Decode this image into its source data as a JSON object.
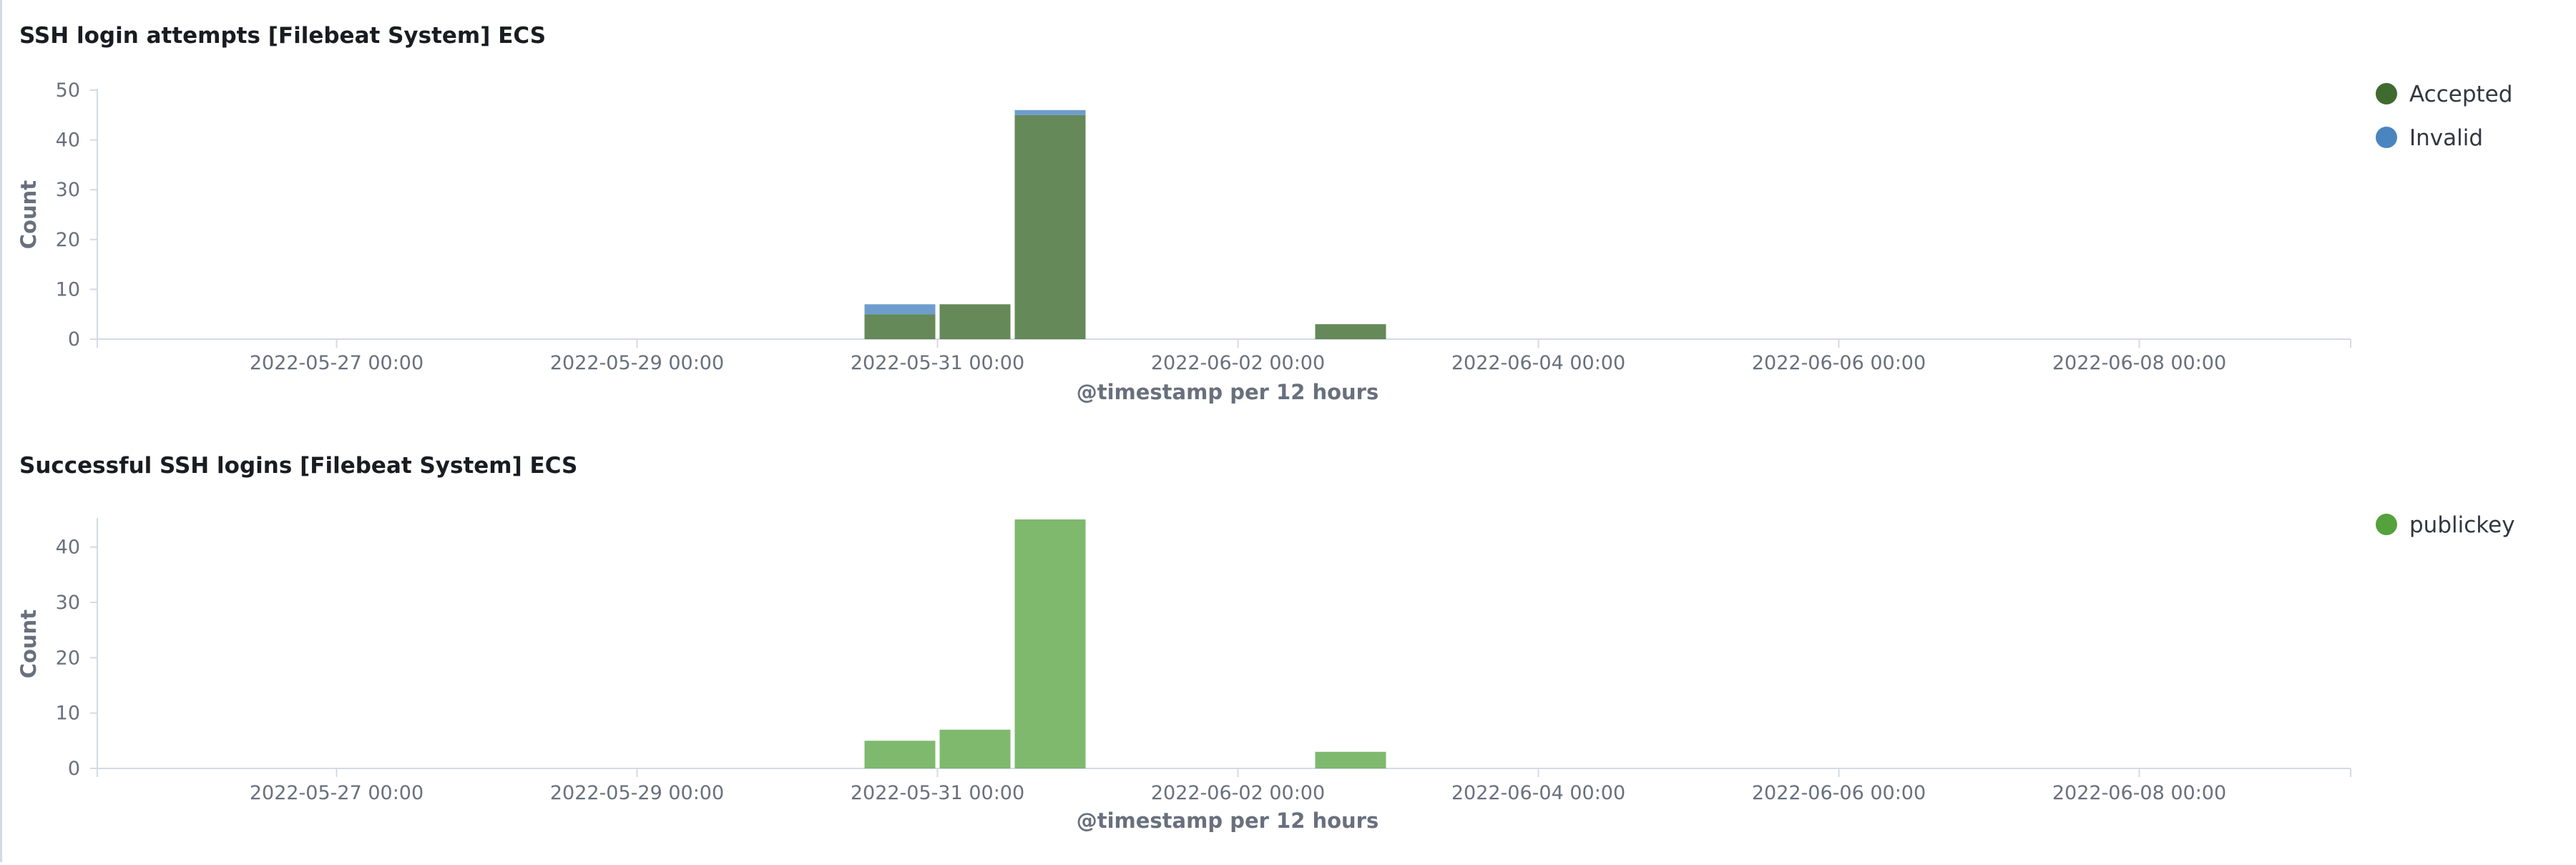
{
  "chart_data": [
    {
      "type": "bar",
      "title": "SSH login attempts [Filebeat System] ECS",
      "xlabel": "@timestamp per 12 hours",
      "ylabel": "Count",
      "ylim": [
        0,
        50
      ],
      "yticks": [
        0,
        10,
        20,
        30,
        40,
        50
      ],
      "xtick_labels": [
        "2022-05-27 00:00",
        "2022-05-29 00:00",
        "2022-05-31 00:00",
        "2022-06-02 00:00",
        "2022-06-04 00:00",
        "2022-06-06 00:00",
        "2022-06-08 00:00"
      ],
      "stacked": true,
      "legend_position": "right",
      "grid": false,
      "categories": [
        "2022-05-30 12:00",
        "2022-05-31 00:00",
        "2022-05-31 12:00",
        "2022-06-02 12:00"
      ],
      "series": [
        {
          "name": "Accepted",
          "color": "#3f6b30",
          "values": [
            5,
            7,
            45,
            3
          ]
        },
        {
          "name": "Invalid",
          "color": "#4a85c0",
          "values": [
            2,
            0,
            1,
            0
          ]
        }
      ]
    },
    {
      "type": "bar",
      "title": "Successful SSH logins [Filebeat System] ECS",
      "xlabel": "@timestamp per 12 hours",
      "ylabel": "Count",
      "ylim": [
        0,
        45
      ],
      "yticks": [
        0,
        10,
        20,
        30,
        40
      ],
      "xtick_labels": [
        "2022-05-27 00:00",
        "2022-05-29 00:00",
        "2022-05-31 00:00",
        "2022-06-02 00:00",
        "2022-06-04 00:00",
        "2022-06-06 00:00",
        "2022-06-08 00:00"
      ],
      "stacked": false,
      "legend_position": "right",
      "grid": false,
      "categories": [
        "2022-05-30 12:00",
        "2022-05-31 00:00",
        "2022-05-31 12:00",
        "2022-06-02 12:00"
      ],
      "series": [
        {
          "name": "publickey",
          "color": "#54a13d",
          "values": [
            5,
            7,
            45,
            3
          ]
        }
      ]
    }
  ]
}
